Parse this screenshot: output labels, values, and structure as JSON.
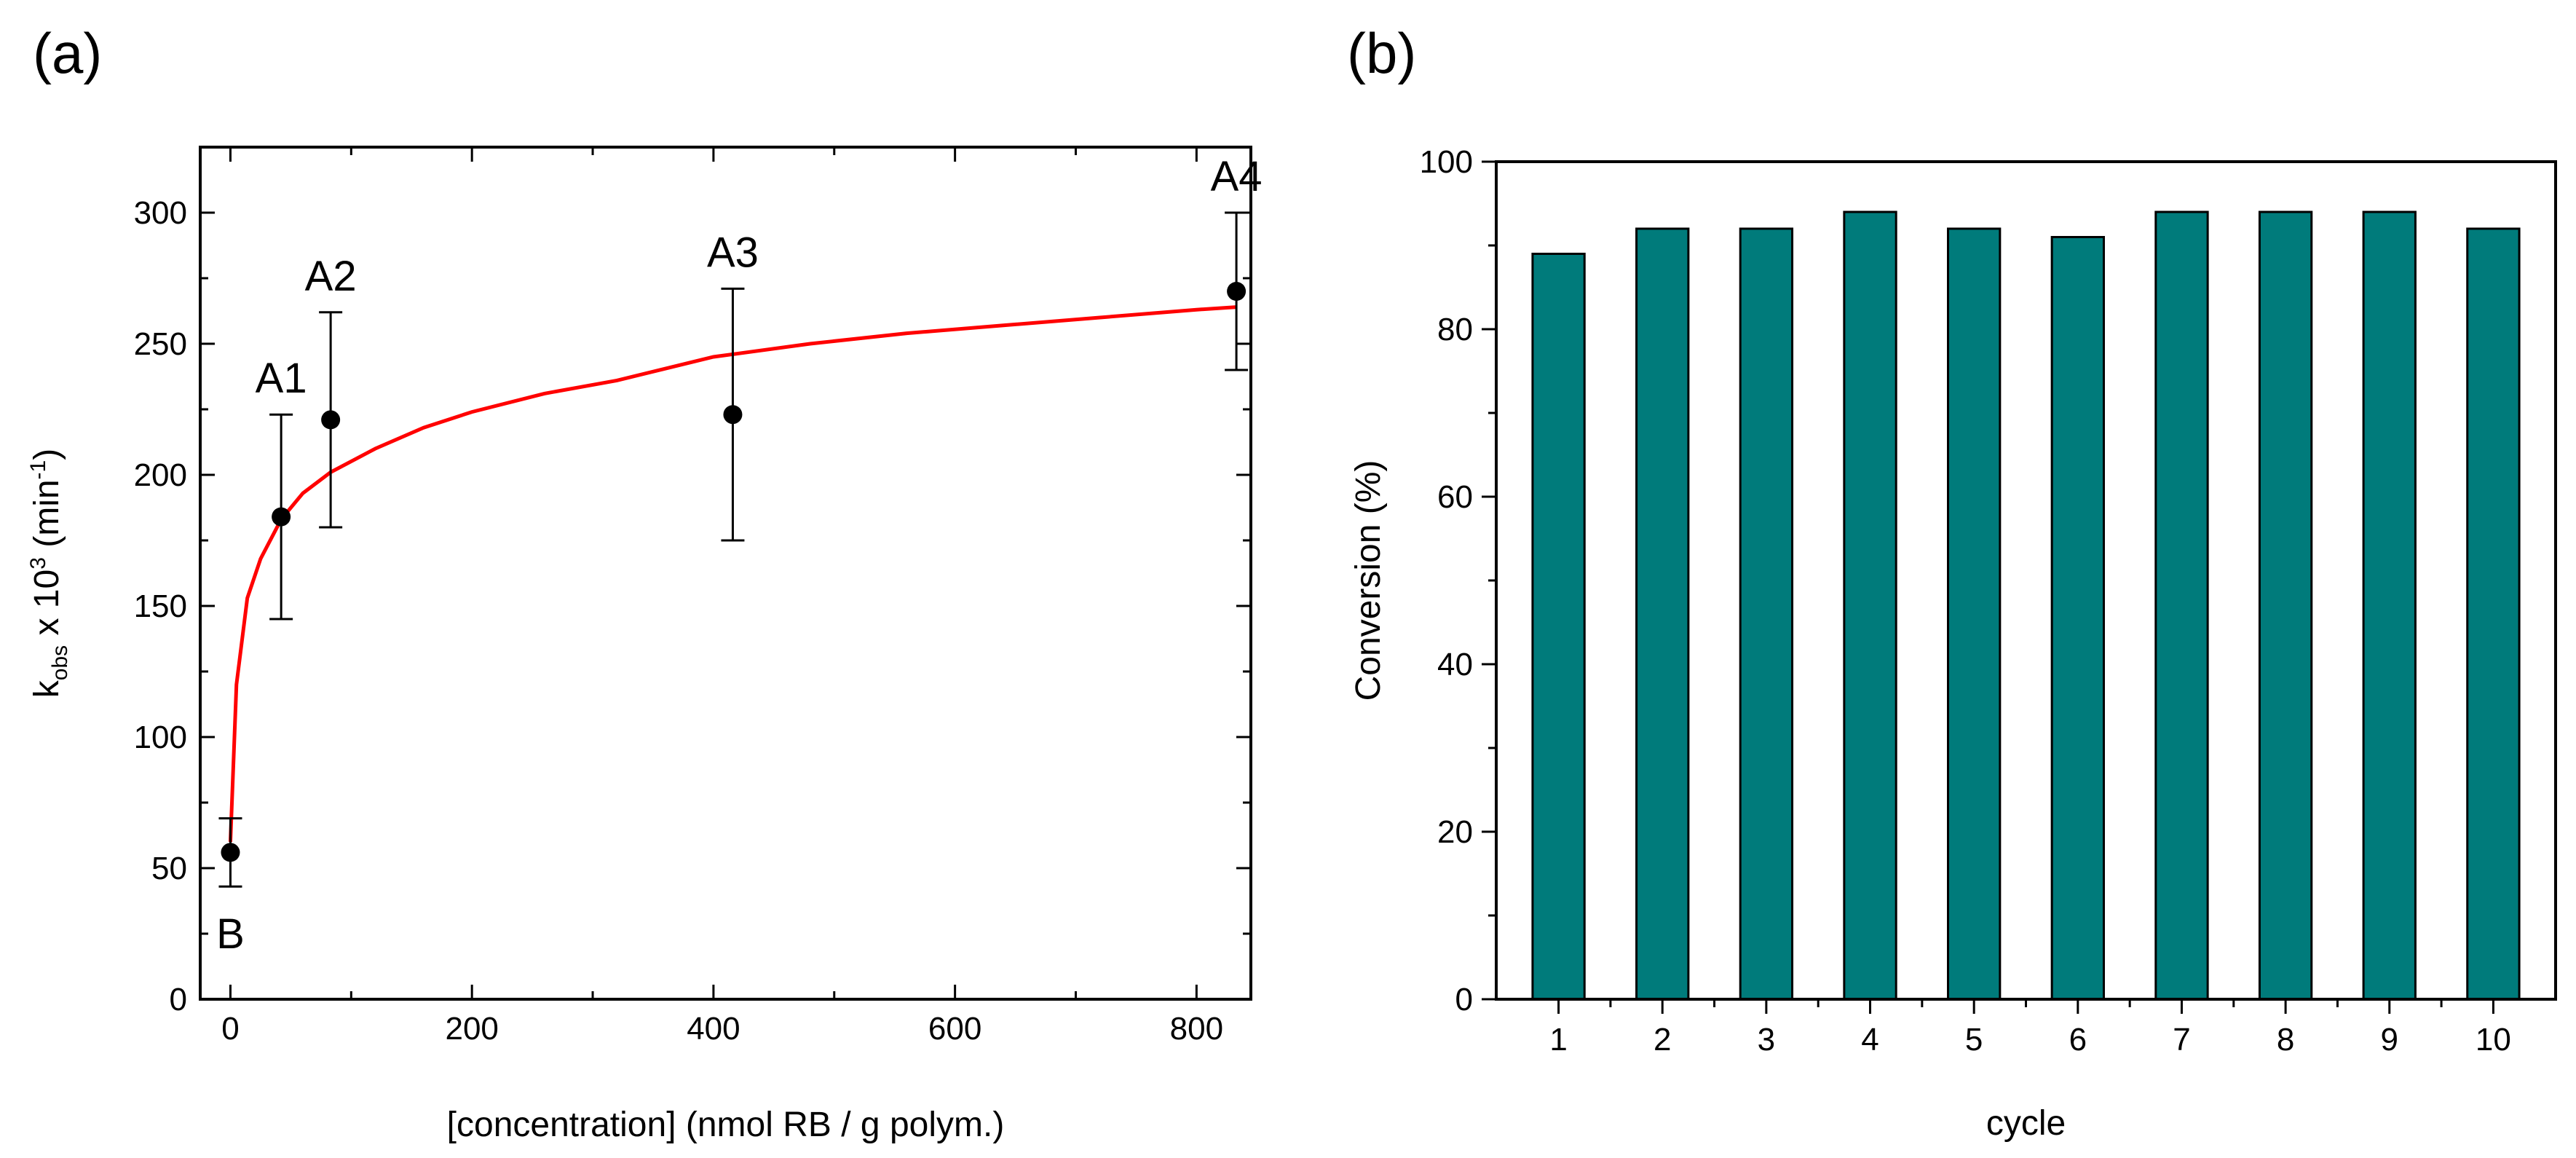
{
  "panel_labels": {
    "a": "(a)",
    "b": "(b)"
  },
  "chart_data": [
    {
      "type": "scatter",
      "title": "",
      "xlabel": "[concentration] (nmol RB / g polym.)",
      "ylabel_parts": {
        "main": "k",
        "sub": "obs",
        "mid": " x 10",
        "sup": "3",
        "unit_open": " (min",
        "unit_sup": "-1",
        "unit_close": ")"
      },
      "xlim": [
        -25,
        845
      ],
      "ylim": [
        0,
        325
      ],
      "x_ticks": [
        0,
        200,
        400,
        600,
        800
      ],
      "y_ticks": [
        0,
        50,
        100,
        150,
        200,
        250,
        300
      ],
      "x_tick_labels": [
        "0",
        "200",
        "400",
        "600",
        "800"
      ],
      "y_tick_labels": [
        "0",
        "50",
        "100",
        "150",
        "200",
        "250",
        "300"
      ],
      "points": [
        {
          "label": "B",
          "x": 0,
          "y": 56,
          "err_low": 43,
          "err_high": 69,
          "label_pos": "below"
        },
        {
          "label": "A1",
          "x": 42,
          "y": 184,
          "err_low": 145,
          "err_high": 223,
          "label_pos": "above"
        },
        {
          "label": "A2",
          "x": 83,
          "y": 221,
          "err_low": 180,
          "err_high": 262,
          "label_pos": "above"
        },
        {
          "label": "A3",
          "x": 416,
          "y": 223,
          "err_low": 175,
          "err_high": 271,
          "label_pos": "above"
        },
        {
          "label": "A4",
          "x": 833,
          "y": 270,
          "err_low": 240,
          "err_high": 300,
          "label_pos": "above"
        }
      ],
      "fit_line": {
        "color": "#ff0000",
        "x": [
          0,
          5,
          14,
          25,
          42,
          60,
          83,
          120,
          160,
          200,
          260,
          320,
          400,
          480,
          560,
          640,
          720,
          800,
          833
        ],
        "y": [
          60,
          120,
          153,
          168,
          183,
          193,
          201,
          210,
          218,
          224,
          231,
          236,
          245,
          250,
          254,
          257,
          260,
          263,
          264
        ]
      }
    },
    {
      "type": "bar",
      "title": "",
      "xlabel": "cycle",
      "ylabel": "Conversion (%)",
      "categories": [
        "1",
        "2",
        "3",
        "4",
        "5",
        "6",
        "7",
        "8",
        "9",
        "10"
      ],
      "values": [
        89,
        92,
        92,
        94,
        92,
        91,
        94,
        94,
        94,
        92
      ],
      "ylim": [
        0,
        100
      ],
      "y_ticks": [
        0,
        20,
        40,
        60,
        80,
        100
      ],
      "y_tick_labels": [
        "0",
        "20",
        "40",
        "60",
        "80",
        "100"
      ],
      "bar_color": "#007b7b"
    }
  ]
}
